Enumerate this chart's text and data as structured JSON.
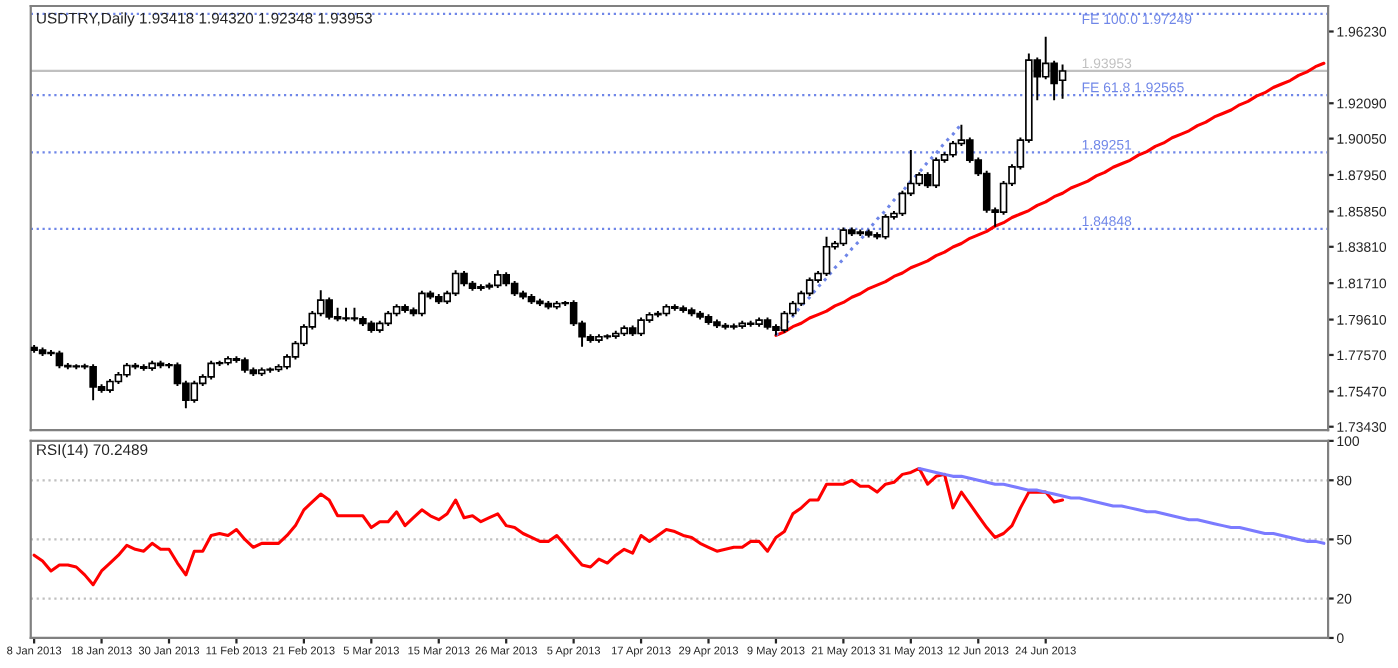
{
  "chart_data": [
    {
      "type": "candlestick",
      "title": "USDTRY,Daily 1.93418 1.94320 1.92348 1.93953",
      "tick_labels": "y",
      "categories": [
        null,
        null,
        null,
        null,
        null,
        null,
        null,
        null,
        null,
        null,
        null,
        null,
        null,
        null,
        null,
        null,
        null,
        null,
        null,
        null,
        null,
        null,
        null,
        null,
        null,
        null,
        null,
        null,
        null,
        null,
        null,
        null,
        null,
        null,
        null,
        null,
        null,
        null,
        null,
        null,
        null,
        null,
        null,
        null,
        null,
        null,
        null,
        null,
        null,
        null,
        null,
        null,
        null,
        null,
        null,
        null,
        null,
        null,
        null,
        null,
        null,
        null,
        null,
        null,
        null,
        null,
        null,
        null,
        null,
        null,
        null,
        null,
        null,
        null,
        null,
        null,
        null,
        null,
        null,
        null,
        null,
        null,
        null,
        null,
        null,
        null,
        null,
        null,
        null,
        null,
        null,
        null,
        null,
        null,
        null,
        null,
        null,
        null,
        null,
        null,
        null,
        null,
        null,
        null,
        null,
        null,
        null,
        null,
        null,
        null,
        null,
        null,
        null,
        null,
        null,
        null,
        null,
        null,
        null,
        null,
        null,
        null,
        null,
        null,
        null,
        null,
        null,
        null,
        null,
        null,
        null,
        null,
        null,
        null,
        null,
        null,
        null,
        null,
        null,
        null,
        null,
        null,
        null,
        null,
        null,
        null,
        null,
        null,
        null,
        null,
        null,
        null,
        null,
        null
      ],
      "ohlc": [
        [
          1.78,
          1.7815,
          1.777,
          1.7785
        ],
        [
          1.7785,
          1.78,
          1.7751,
          1.7766
        ],
        [
          1.777,
          1.7785,
          1.7751,
          1.7766
        ],
        [
          1.7766,
          1.7781,
          1.7681,
          1.7696
        ],
        [
          1.7696,
          1.7711,
          1.7674,
          1.7689
        ],
        [
          1.7689,
          1.7704,
          1.7674,
          1.7692
        ],
        [
          1.7692,
          1.7707,
          1.7674,
          1.7689
        ],
        [
          1.7689,
          1.7704,
          1.7496,
          1.7573
        ],
        [
          1.7573,
          1.7588,
          1.7539,
          1.7554
        ],
        [
          1.7554,
          1.7619,
          1.7539,
          1.7604
        ],
        [
          1.7604,
          1.7658,
          1.7589,
          1.7643
        ],
        [
          1.7643,
          1.7711,
          1.7628,
          1.7696
        ],
        [
          1.7696,
          1.7711,
          1.7674,
          1.7689
        ],
        [
          1.7689,
          1.7704,
          1.7666,
          1.7681
        ],
        [
          1.7681,
          1.7723,
          1.7666,
          1.7708
        ],
        [
          1.7708,
          1.7723,
          1.7681,
          1.7696
        ],
        [
          1.7696,
          1.7711,
          1.7681,
          1.7699
        ],
        [
          1.7699,
          1.7714,
          1.7578,
          1.7593
        ],
        [
          1.7593,
          1.7608,
          1.745,
          1.7496
        ],
        [
          1.7496,
          1.7608,
          1.7481,
          1.7593
        ],
        [
          1.7593,
          1.7646,
          1.7578,
          1.7631
        ],
        [
          1.7631,
          1.7723,
          1.7616,
          1.7708
        ],
        [
          1.7708,
          1.7723,
          1.7693,
          1.7712
        ],
        [
          1.7712,
          1.775,
          1.7697,
          1.7735
        ],
        [
          1.7735,
          1.775,
          1.7712,
          1.7727
        ],
        [
          1.7727,
          1.7742,
          1.7655,
          1.767
        ],
        [
          1.767,
          1.7685,
          1.7635,
          1.765
        ],
        [
          1.765,
          1.7685,
          1.7635,
          1.767
        ],
        [
          1.767,
          1.7685,
          1.7655,
          1.7673
        ],
        [
          1.7673,
          1.7704,
          1.7658,
          1.7689
        ],
        [
          1.7689,
          1.7761,
          1.7674,
          1.7746
        ],
        [
          1.7746,
          1.7838,
          1.7731,
          1.7823
        ],
        [
          1.7823,
          1.7934,
          1.7808,
          1.7919
        ],
        [
          1.7919,
          1.8011,
          1.7904,
          1.7996
        ],
        [
          1.7996,
          1.8131,
          1.7981,
          1.8073
        ],
        [
          1.8073,
          1.8088,
          1.7962,
          1.7977
        ],
        [
          1.7977,
          1.803,
          1.7951,
          1.7966
        ],
        [
          1.7966,
          1.803,
          1.7951,
          1.797
        ],
        [
          1.797,
          1.803,
          1.7951,
          1.7966
        ],
        [
          1.7966,
          1.7981,
          1.7924,
          1.7939
        ],
        [
          1.7939,
          1.7954,
          1.7885,
          1.79
        ],
        [
          1.79,
          1.7954,
          1.7885,
          1.7939
        ],
        [
          1.7939,
          1.8011,
          1.7924,
          1.7996
        ],
        [
          1.7996,
          1.805,
          1.7981,
          1.8035
        ],
        [
          1.8035,
          1.805,
          1.8001,
          1.8016
        ],
        [
          1.8016,
          1.8031,
          1.7981,
          1.7996
        ],
        [
          1.7996,
          1.8127,
          1.7981,
          1.8112
        ],
        [
          1.8112,
          1.8127,
          1.8078,
          1.8093
        ],
        [
          1.8093,
          1.8108,
          1.8051,
          1.8066
        ],
        [
          1.8066,
          1.8127,
          1.8051,
          1.8112
        ],
        [
          1.8112,
          1.8246,
          1.8097,
          1.8227
        ],
        [
          1.8227,
          1.8242,
          1.8154,
          1.8169
        ],
        [
          1.8169,
          1.8184,
          1.8128,
          1.8143
        ],
        [
          1.8143,
          1.8165,
          1.8128,
          1.815
        ],
        [
          1.815,
          1.8173,
          1.8135,
          1.8158
        ],
        [
          1.8158,
          1.8246,
          1.8143,
          1.8219
        ],
        [
          1.8219,
          1.8234,
          1.8154,
          1.8169
        ],
        [
          1.8169,
          1.8184,
          1.8097,
          1.8112
        ],
        [
          1.8112,
          1.8127,
          1.8078,
          1.8093
        ],
        [
          1.8093,
          1.8108,
          1.8051,
          1.8066
        ],
        [
          1.8066,
          1.8081,
          1.8039,
          1.8054
        ],
        [
          1.8054,
          1.8069,
          1.802,
          1.8035
        ],
        [
          1.8035,
          1.8069,
          1.802,
          1.8054
        ],
        [
          1.8054,
          1.8069,
          1.8039,
          1.8058
        ],
        [
          1.8058,
          1.8073,
          1.7924,
          1.7939
        ],
        [
          1.7939,
          1.7954,
          1.7804,
          1.7862
        ],
        [
          1.7862,
          1.7877,
          1.7828,
          1.7843
        ],
        [
          1.7843,
          1.7877,
          1.7828,
          1.7862
        ],
        [
          1.7862,
          1.7877,
          1.7847,
          1.7866
        ],
        [
          1.7866,
          1.7896,
          1.7851,
          1.7881
        ],
        [
          1.7881,
          1.7927,
          1.7866,
          1.7912
        ],
        [
          1.7912,
          1.7927,
          1.7866,
          1.7881
        ],
        [
          1.7881,
          1.7973,
          1.7866,
          1.7958
        ],
        [
          1.7958,
          1.8004,
          1.7943,
          1.7989
        ],
        [
          1.7989,
          1.8011,
          1.7974,
          1.7996
        ],
        [
          1.7996,
          1.805,
          1.7981,
          1.8035
        ],
        [
          1.8035,
          1.805,
          1.8012,
          1.8027
        ],
        [
          1.8027,
          1.8042,
          1.8001,
          1.8016
        ],
        [
          1.8016,
          1.8031,
          1.7981,
          1.7996
        ],
        [
          1.7996,
          1.8011,
          1.7962,
          1.7977
        ],
        [
          1.7977,
          1.7992,
          1.7931,
          1.7946
        ],
        [
          1.7946,
          1.7961,
          1.7912,
          1.7927
        ],
        [
          1.7927,
          1.7942,
          1.7904,
          1.7919
        ],
        [
          1.7919,
          1.7938,
          1.7904,
          1.7923
        ],
        [
          1.7923,
          1.7954,
          1.7908,
          1.7939
        ],
        [
          1.7939,
          1.7954,
          1.792,
          1.7935
        ],
        [
          1.7935,
          1.7973,
          1.792,
          1.7958
        ],
        [
          1.7958,
          1.7973,
          1.7904,
          1.7919
        ],
        [
          1.7919,
          1.7934,
          1.7869,
          1.79
        ],
        [
          1.79,
          1.8011,
          1.7885,
          1.7996
        ],
        [
          1.7996,
          1.8069,
          1.7981,
          1.8054
        ],
        [
          1.8054,
          1.8127,
          1.8039,
          1.8112
        ],
        [
          1.8112,
          1.8204,
          1.8097,
          1.8189
        ],
        [
          1.8189,
          1.8242,
          1.8174,
          1.8227
        ],
        [
          1.8227,
          1.8439,
          1.8212,
          1.8381
        ],
        [
          1.8381,
          1.8415,
          1.8366,
          1.84
        ],
        [
          1.84,
          1.8492,
          1.8385,
          1.8477
        ],
        [
          1.8477,
          1.8492,
          1.8443,
          1.8458
        ],
        [
          1.8458,
          1.8481,
          1.8443,
          1.8466
        ],
        [
          1.8466,
          1.8481,
          1.8435,
          1.845
        ],
        [
          1.845,
          1.8465,
          1.8424,
          1.8439
        ],
        [
          1.8439,
          1.8569,
          1.8424,
          1.8554
        ],
        [
          1.8554,
          1.8588,
          1.8539,
          1.8573
        ],
        [
          1.8573,
          1.8704,
          1.8558,
          1.8689
        ],
        [
          1.8689,
          1.8939,
          1.8674,
          1.8746
        ],
        [
          1.8746,
          1.8811,
          1.8731,
          1.8796
        ],
        [
          1.8796,
          1.8811,
          1.872,
          1.8735
        ],
        [
          1.8735,
          1.8896,
          1.872,
          1.8881
        ],
        [
          1.8881,
          1.8927,
          1.8866,
          1.8912
        ],
        [
          1.8912,
          1.8992,
          1.8897,
          1.8977
        ],
        [
          1.8977,
          1.9085,
          1.8962,
          1.8996
        ],
        [
          1.8996,
          1.9011,
          1.8866,
          1.8881
        ],
        [
          1.8881,
          1.8896,
          1.8789,
          1.8804
        ],
        [
          1.8804,
          1.8819,
          1.8578,
          1.8593
        ],
        [
          1.8593,
          1.8608,
          1.8496,
          1.8581
        ],
        [
          1.8581,
          1.8761,
          1.8566,
          1.8746
        ],
        [
          1.8746,
          1.8857,
          1.8731,
          1.8842
        ],
        [
          1.8842,
          1.9011,
          1.8827,
          1.8996
        ],
        [
          1.8996,
          1.9496,
          1.8981,
          1.9458
        ],
        [
          1.9458,
          1.9473,
          1.9227,
          1.9362
        ],
        [
          1.9362,
          1.9593,
          1.9347,
          1.9439
        ],
        [
          1.9439,
          1.9454,
          1.9227,
          1.9323
        ],
        [
          1.93418,
          1.9432,
          1.92348,
          1.93953
        ],
        null,
        null,
        null,
        null,
        null,
        null,
        null,
        null,
        null,
        null,
        null,
        null,
        null,
        null,
        null,
        null,
        null,
        null,
        null,
        null,
        null,
        null,
        null,
        null,
        null,
        null,
        null,
        null,
        null,
        null,
        null
      ],
      "series": [
        {
          "type": "line",
          "color": "#ff0000",
          "line_style": "solid",
          "values": [
            null,
            null,
            null,
            null,
            null,
            null,
            null,
            null,
            null,
            null,
            null,
            null,
            null,
            null,
            null,
            null,
            null,
            null,
            null,
            null,
            null,
            null,
            null,
            null,
            null,
            null,
            null,
            null,
            null,
            null,
            null,
            null,
            null,
            null,
            null,
            null,
            null,
            null,
            null,
            null,
            null,
            null,
            null,
            null,
            null,
            null,
            null,
            null,
            null,
            null,
            null,
            null,
            null,
            null,
            null,
            null,
            null,
            null,
            null,
            null,
            null,
            null,
            null,
            null,
            null,
            null,
            null,
            null,
            null,
            null,
            null,
            null,
            null,
            null,
            null,
            null,
            null,
            null,
            null,
            null,
            null,
            null,
            null,
            null,
            null,
            null,
            null,
            null,
            1.787,
            1.789,
            1.792,
            1.794,
            1.797,
            1.799,
            1.801,
            1.804,
            1.806,
            1.809,
            1.811,
            1.814,
            1.816,
            1.818,
            1.821,
            1.823,
            1.826,
            1.828,
            1.83,
            1.833,
            1.835,
            1.838,
            1.84,
            1.843,
            1.845,
            1.847,
            1.85,
            1.852,
            1.855,
            1.857,
            1.859,
            1.862,
            1.864,
            1.867,
            1.869,
            1.872,
            1.874,
            1.876,
            1.879,
            1.881,
            1.884,
            1.886,
            1.888,
            1.891,
            1.893,
            1.896,
            1.898,
            1.901,
            1.903,
            1.905,
            1.908,
            1.91,
            1.913,
            1.915,
            1.917,
            1.92,
            1.922,
            1.925,
            1.927,
            1.93,
            1.932,
            1.934,
            1.937,
            1.939,
            1.942,
            1.944
          ]
        },
        {
          "type": "line",
          "color": "#6f86e8",
          "line_style": "dotted",
          "values": [
            null,
            null,
            null,
            null,
            null,
            null,
            null,
            null,
            null,
            null,
            null,
            null,
            null,
            null,
            null,
            null,
            null,
            null,
            null,
            null,
            null,
            null,
            null,
            null,
            null,
            null,
            null,
            null,
            null,
            null,
            null,
            null,
            null,
            null,
            null,
            null,
            null,
            null,
            null,
            null,
            null,
            null,
            null,
            null,
            null,
            null,
            null,
            null,
            null,
            null,
            null,
            null,
            null,
            null,
            null,
            null,
            null,
            null,
            null,
            null,
            null,
            null,
            null,
            null,
            null,
            null,
            null,
            null,
            null,
            null,
            null,
            null,
            null,
            null,
            null,
            null,
            null,
            null,
            null,
            null,
            null,
            null,
            null,
            null,
            null,
            null,
            null,
            null,
            1.787,
            1.793,
            1.798,
            1.804,
            1.809,
            1.815,
            1.82,
            1.826,
            1.831,
            1.837,
            1.842,
            1.848,
            1.854,
            1.859,
            1.865,
            1.87,
            1.876,
            1.881,
            1.887,
            1.892,
            1.898,
            1.903,
            1.909,
            null,
            null,
            null,
            null,
            null,
            null,
            null,
            null,
            null,
            null,
            null,
            null,
            null,
            null,
            null,
            null,
            null,
            null,
            null,
            null,
            null,
            null,
            null,
            null,
            null,
            null,
            null,
            null,
            null,
            null,
            null,
            null,
            null,
            null,
            null,
            null,
            null,
            null,
            null,
            null,
            null,
            null,
            null
          ]
        }
      ],
      "ref_lines": [
        {
          "axis": "y",
          "value": 1.97249,
          "label": "FE 100.0 1.97249",
          "color": "#6f86e8",
          "line_style": "dotted"
        },
        {
          "axis": "y",
          "value": 1.93953,
          "label": "1.93953",
          "color": "#c0c0c0",
          "line_style": "solid"
        },
        {
          "axis": "y",
          "value": 1.92565,
          "label": "FE 61.8 1.92565",
          "color": "#6f86e8",
          "line_style": "dotted"
        },
        {
          "axis": "y",
          "value": 1.89251,
          "label": "1.89251",
          "color": "#6f86e8",
          "line_style": "dotted"
        },
        {
          "axis": "y",
          "value": 1.84848,
          "label": "1.84848",
          "color": "#6f86e8",
          "line_style": "dotted"
        }
      ],
      "ylim": [
        1.7323,
        1.977
      ],
      "yticks": [
        {
          "value": 1.9623,
          "label": "1.96230"
        },
        {
          "value": 1.9209,
          "label": "1.92090"
        },
        {
          "value": 1.9005,
          "label": "1.90050"
        },
        {
          "value": 1.8795,
          "label": "1.87950"
        },
        {
          "value": 1.8585,
          "label": "1.85850"
        },
        {
          "value": 1.8381,
          "label": "1.83810"
        },
        {
          "value": 1.8171,
          "label": "1.81710"
        },
        {
          "value": 1.7961,
          "label": "1.79610"
        },
        {
          "value": 1.7757,
          "label": "1.77570"
        },
        {
          "value": 1.7547,
          "label": "1.75470"
        },
        {
          "value": 1.7343,
          "label": "1.73430"
        }
      ]
    },
    {
      "type": "line",
      "title": "RSI(14) 70.2489",
      "categories": [
        "8 Jan 2013",
        null,
        null,
        null,
        null,
        null,
        null,
        null,
        "18 Jan 2013",
        null,
        null,
        null,
        null,
        null,
        null,
        null,
        "30 Jan 2013",
        null,
        null,
        null,
        null,
        null,
        null,
        null,
        "11 Feb 2013",
        null,
        null,
        null,
        null,
        null,
        null,
        null,
        "21 Feb 2013",
        null,
        null,
        null,
        null,
        null,
        null,
        null,
        "5 Mar 2013",
        null,
        null,
        null,
        null,
        null,
        null,
        null,
        "15 Mar 2013",
        null,
        null,
        null,
        null,
        null,
        null,
        null,
        "26 Mar 2013",
        null,
        null,
        null,
        null,
        null,
        null,
        null,
        "5 Apr 2013",
        null,
        null,
        null,
        null,
        null,
        null,
        null,
        "17 Apr 2013",
        null,
        null,
        null,
        null,
        null,
        null,
        null,
        "29 Apr 2013",
        null,
        null,
        null,
        null,
        null,
        null,
        null,
        "9 May 2013",
        null,
        null,
        null,
        null,
        null,
        null,
        null,
        "21 May 2013",
        null,
        null,
        null,
        null,
        null,
        null,
        null,
        "31 May 2013",
        null,
        null,
        null,
        null,
        null,
        null,
        null,
        "12 Jun 2013",
        null,
        null,
        null,
        null,
        null,
        null,
        null,
        "24 Jun 2013",
        null,
        null,
        null,
        null,
        null,
        null,
        null,
        null,
        null,
        null,
        null,
        null,
        null,
        null,
        null,
        null,
        null,
        null,
        null,
        null,
        null,
        null,
        null,
        null,
        null,
        null,
        null,
        null,
        null,
        null,
        null,
        null,
        null
      ],
      "series": [
        {
          "color": "#ff0000",
          "line_style": "solid",
          "values": [
            42,
            39,
            34,
            37,
            37,
            36,
            32,
            27,
            34,
            38,
            42,
            47,
            45,
            44,
            48,
            45,
            45,
            38,
            32,
            44,
            44,
            52,
            53,
            52,
            55,
            50,
            46,
            48,
            48,
            48,
            52,
            57,
            65,
            69,
            73,
            70,
            62,
            62,
            62,
            62,
            56,
            59,
            59,
            64,
            57,
            61,
            65,
            62,
            60,
            63,
            70,
            61,
            62,
            59,
            61,
            63,
            57,
            56,
            53,
            51,
            49,
            49,
            52,
            47,
            42,
            37,
            36,
            40,
            38,
            42,
            45,
            43,
            52,
            49,
            52,
            55,
            54,
            52,
            51,
            48,
            46,
            44,
            45,
            46,
            46,
            49,
            49,
            44,
            51,
            54,
            63,
            66,
            70,
            70,
            78,
            78,
            78,
            80,
            77,
            77,
            74,
            78,
            79,
            83,
            84,
            86,
            78,
            82,
            83,
            66,
            74,
            68,
            62,
            56,
            51,
            53,
            57,
            66,
            74,
            74,
            74,
            69,
            70,
            null,
            null,
            null,
            null,
            null,
            null,
            null,
            null,
            null,
            null,
            null,
            null,
            null,
            null,
            null,
            null,
            null,
            null,
            null,
            null,
            null,
            null,
            null,
            null,
            null,
            null,
            null,
            null,
            null,
            null,
            null
          ]
        },
        {
          "color": "#7b7bff",
          "line_style": "solid",
          "values": [
            null,
            null,
            null,
            null,
            null,
            null,
            null,
            null,
            null,
            null,
            null,
            null,
            null,
            null,
            null,
            null,
            null,
            null,
            null,
            null,
            null,
            null,
            null,
            null,
            null,
            null,
            null,
            null,
            null,
            null,
            null,
            null,
            null,
            null,
            null,
            null,
            null,
            null,
            null,
            null,
            null,
            null,
            null,
            null,
            null,
            null,
            null,
            null,
            null,
            null,
            null,
            null,
            null,
            null,
            null,
            null,
            null,
            null,
            null,
            null,
            null,
            null,
            null,
            null,
            null,
            null,
            null,
            null,
            null,
            null,
            null,
            null,
            null,
            null,
            null,
            null,
            null,
            null,
            null,
            null,
            null,
            null,
            null,
            null,
            null,
            null,
            null,
            null,
            null,
            null,
            null,
            null,
            null,
            null,
            null,
            null,
            null,
            null,
            null,
            null,
            null,
            null,
            null,
            null,
            null,
            86,
            85,
            84,
            83,
            82,
            82,
            81,
            80,
            79,
            78,
            78,
            77,
            76,
            75,
            75,
            74,
            73,
            72,
            71,
            71,
            70,
            69,
            68,
            67,
            67,
            66,
            65,
            64,
            64,
            63,
            62,
            61,
            60,
            60,
            59,
            58,
            57,
            56,
            56,
            55,
            54,
            53,
            53,
            52,
            51,
            50,
            49,
            49,
            48
          ]
        }
      ],
      "ref_lines": [
        {
          "axis": "y",
          "value": 80,
          "color": "#c0c0c0",
          "line_style": "dotted"
        },
        {
          "axis": "y",
          "value": 50,
          "color": "#c0c0c0",
          "line_style": "dotted"
        },
        {
          "axis": "y",
          "value": 20,
          "color": "#c0c0c0",
          "line_style": "dotted"
        }
      ],
      "ylim": [
        0,
        100
      ],
      "yticks": [
        0,
        20,
        50,
        80,
        100
      ]
    }
  ]
}
